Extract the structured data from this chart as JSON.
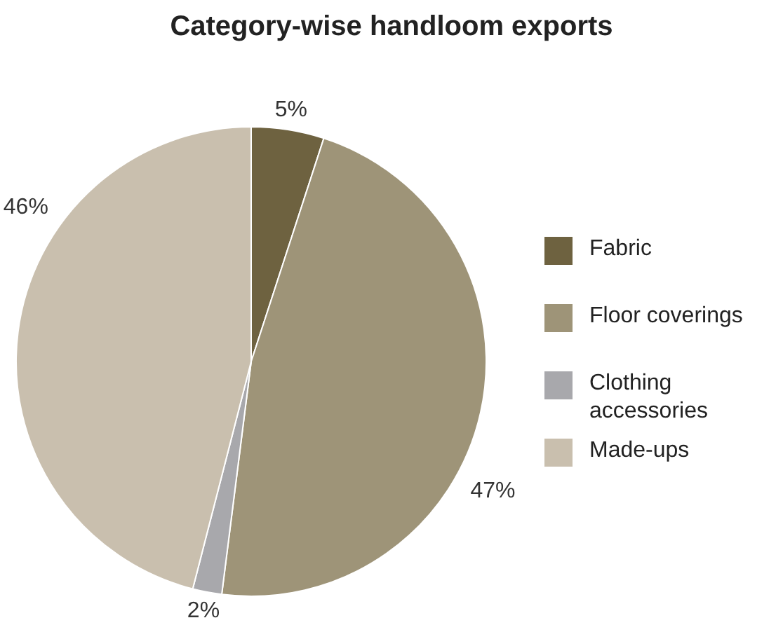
{
  "chart_data": {
    "type": "pie",
    "title": "Category-wise handloom exports",
    "categories": [
      "Fabric",
      "Floor coverings",
      "Clothing accessories",
      "Made-ups"
    ],
    "values": [
      5,
      47,
      2,
      46
    ],
    "value_labels": [
      "5%",
      "47%",
      "2%",
      "46%"
    ],
    "colors": [
      "#6e6240",
      "#9e9478",
      "#a8a8ac",
      "#c9bfae"
    ],
    "legend": "right"
  }
}
